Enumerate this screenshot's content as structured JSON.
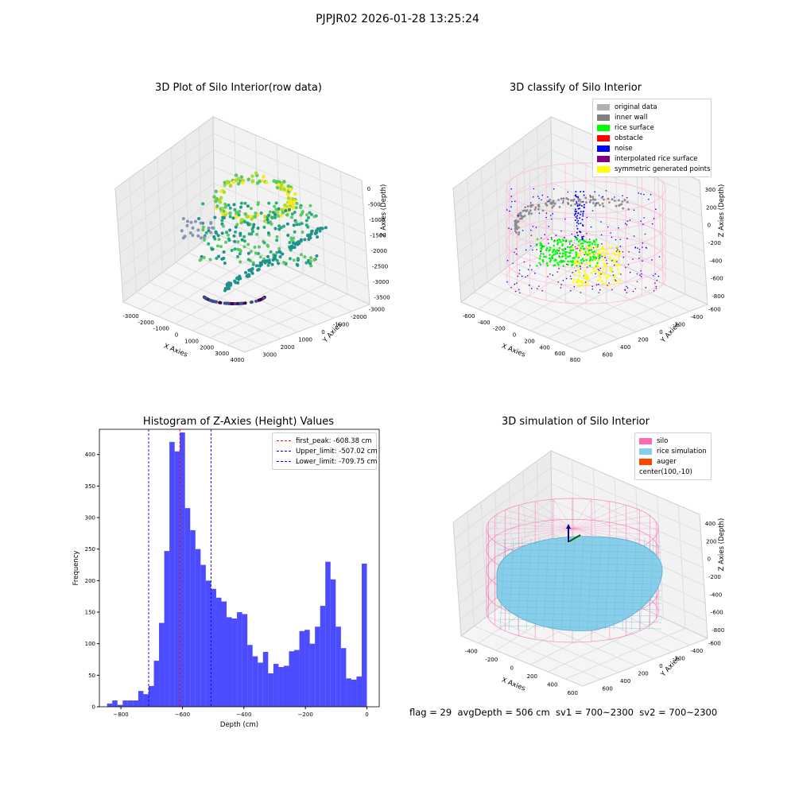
{
  "suptitle": "PJPJR02 2026-01-28 13:25:24",
  "status_text": "flag = 29  avgDepth = 506 cm  sv1 = 700~2300  sv2 = 700~2300",
  "chart_data": [
    {
      "type": "scatter",
      "title": "3D Plot of Silo Interior(row data)",
      "xlabel": "X Axies",
      "ylabel": "Y Axies",
      "zlabel": "Z Axies (Depth)",
      "x_ticks": [
        "-3000",
        "-2000",
        "-1000",
        "0",
        "1000",
        "2000",
        "3000",
        "4000"
      ],
      "y_ticks": [
        "-3000",
        "-2000",
        "-1000",
        "0",
        "1000",
        "2000",
        "3000"
      ],
      "z_ticks": [
        "0",
        "-500",
        "-1000",
        "-1500",
        "-2000",
        "-2500",
        "-3000",
        "-3500"
      ],
      "colormap": "viridis"
    },
    {
      "type": "scatter",
      "title": "3D classify of Silo Interior",
      "xlabel": "X Axies",
      "ylabel": "Y Axies",
      "zlabel": "Z Axies (Depth)",
      "x_ticks": [
        "-600",
        "-400",
        "-200",
        "0",
        "200",
        "400",
        "600",
        "800"
      ],
      "y_ticks": [
        "-600",
        "-400",
        "-200",
        "0",
        "200",
        "400",
        "600"
      ],
      "z_ticks": [
        "300",
        "200",
        "0",
        "-200",
        "-400",
        "-600",
        "-800"
      ],
      "legend": [
        {
          "label": "original data",
          "color": "#b0b0b0"
        },
        {
          "label": "inner wall",
          "color": "#808080"
        },
        {
          "label": "rice surface",
          "color": "#00ff00"
        },
        {
          "label": "obstacle",
          "color": "#ff0000"
        },
        {
          "label": "noise",
          "color": "#0000ff"
        },
        {
          "label": "interpolated rice surface",
          "color": "#800080"
        },
        {
          "label": "symmetric generated points",
          "color": "#ffff00"
        }
      ]
    },
    {
      "type": "bar",
      "title": "Histogram of Z-Axies (Height) Values",
      "xlabel": "Depth (cm)",
      "ylabel": "Frequency",
      "xlim": [
        -870,
        40
      ],
      "ylim": [
        0,
        440
      ],
      "x_ticks": [
        -800,
        -600,
        -400,
        -200,
        0
      ],
      "y_ticks": [
        0,
        50,
        100,
        150,
        200,
        250,
        300,
        350,
        400
      ],
      "bin_start": -845,
      "bin_width": 16.9,
      "values": [
        5,
        10,
        3,
        10,
        10,
        10,
        25,
        20,
        33,
        73,
        133,
        247,
        420,
        405,
        435,
        315,
        280,
        250,
        225,
        200,
        187,
        173,
        167,
        142,
        140,
        150,
        147,
        98,
        80,
        70,
        87,
        53,
        68,
        63,
        65,
        88,
        90,
        120,
        122,
        100,
        127,
        160,
        230,
        202,
        127,
        93,
        45,
        43,
        48,
        227
      ],
      "bar_color": "#0000ff",
      "vlines": [
        {
          "label": "first_peak: -608.38 cm",
          "x": -608.38,
          "color": "#ff0000"
        },
        {
          "label": "Upper_limit: -507.02 cm",
          "x": -507.02,
          "color": "#0000ff"
        },
        {
          "label": "Lower_limit: -709.75 cm",
          "x": -709.75,
          "color": "#0000ff"
        }
      ]
    },
    {
      "type": "surface",
      "title": "3D simulation of Silo Interior",
      "xlabel": "X Axies",
      "ylabel": "Y Axies",
      "zlabel": "Z Axies (Depth)",
      "x_ticks": [
        "-400",
        "-200",
        "0",
        "200",
        "400",
        "600"
      ],
      "y_ticks": [
        "-600",
        "-400",
        "-200",
        "0",
        "200",
        "400",
        "600"
      ],
      "z_ticks": [
        "400",
        "200",
        "0",
        "-200",
        "-400",
        "-600",
        "-800"
      ],
      "legend": [
        {
          "label": "silo",
          "color": "#ff69b4"
        },
        {
          "label": "rice simulation",
          "color": "#87ceeb"
        },
        {
          "label": "auger",
          "color": "#ff4500"
        },
        {
          "label": "center(100,-10)",
          "color": ""
        }
      ]
    }
  ]
}
